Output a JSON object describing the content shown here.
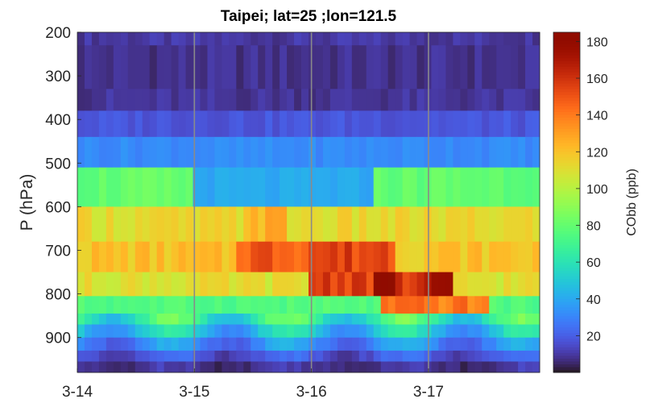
{
  "chart_data": {
    "type": "heatmap",
    "title": "Taipei; lat=25 ;lon=121.5",
    "xlabel": "",
    "ylabel": "P (hPa)",
    "x_tick_labels": [
      "3-14",
      "3-15",
      "3-16",
      "3-17"
    ],
    "x_tick_values": [
      0,
      1,
      2,
      3
    ],
    "xlim": [
      0,
      3.95
    ],
    "xunit": "days from 3-14 00:00",
    "y_tick_values": [
      200,
      300,
      400,
      500,
      600,
      700,
      800,
      900
    ],
    "y_tick_labels": [
      "200",
      "300",
      "400",
      "500",
      "600",
      "700",
      "800",
      "900"
    ],
    "ylim": [
      200,
      980
    ],
    "y_reversed": true,
    "vertical_gridlines_at": [
      1,
      2,
      3
    ],
    "colorbar": {
      "label": "CObb (ppb)",
      "colormap": "turbo",
      "range": [
        0,
        185
      ],
      "tick_values": [
        20,
        40,
        60,
        80,
        100,
        120,
        140,
        160,
        180
      ],
      "tick_labels": [
        "20",
        "40",
        "60",
        "80",
        "100",
        "120",
        "140",
        "160",
        "180"
      ]
    },
    "layers": [
      {
        "p_top": 200,
        "p_bottom": 230,
        "value": 10
      },
      {
        "p_top": 230,
        "p_bottom": 330,
        "value": 8
      },
      {
        "p_top": 330,
        "p_bottom": 380,
        "value": 9
      },
      {
        "p_top": 380,
        "p_bottom": 440,
        "value": 18
      },
      {
        "p_top": 440,
        "p_bottom": 510,
        "value": 32
      },
      {
        "p_top": 510,
        "p_bottom": 600,
        "value": 80
      },
      {
        "p_top": 600,
        "p_bottom": 680,
        "value": 112
      },
      {
        "p_top": 680,
        "p_bottom": 750,
        "value": 120
      },
      {
        "p_top": 750,
        "p_bottom": 805,
        "value": 110
      },
      {
        "p_top": 805,
        "p_bottom": 845,
        "value": 75
      },
      {
        "p_top": 845,
        "p_bottom": 870,
        "value": 45
      },
      {
        "p_top": 870,
        "p_bottom": 900,
        "value": 32
      },
      {
        "p_top": 900,
        "p_bottom": 930,
        "value": 22
      },
      {
        "p_top": 930,
        "p_bottom": 955,
        "value": 15
      },
      {
        "p_top": 955,
        "p_bottom": 980,
        "value": 10
      }
    ],
    "features": [
      {
        "t_start": 1.35,
        "t_end": 1.95,
        "p_top": 680,
        "p_bottom": 750,
        "value": 150
      },
      {
        "t_start": 2.0,
        "t_end": 2.7,
        "p_top": 680,
        "p_bottom": 750,
        "value": 155
      },
      {
        "t_start": 2.0,
        "t_end": 3.2,
        "p_top": 750,
        "p_bottom": 805,
        "value": 158
      },
      {
        "t_start": 2.55,
        "t_end": 2.72,
        "p_top": 750,
        "p_bottom": 805,
        "value": 185
      },
      {
        "t_start": 2.95,
        "t_end": 3.2,
        "p_top": 750,
        "p_bottom": 805,
        "value": 170
      },
      {
        "t_start": 2.6,
        "t_end": 3.5,
        "p_top": 805,
        "p_bottom": 845,
        "value": 140
      },
      {
        "t_start": 1.0,
        "t_end": 2.5,
        "p_top": 510,
        "p_bottom": 600,
        "value": 40
      },
      {
        "t_start": 1.4,
        "t_end": 1.8,
        "p_top": 600,
        "p_bottom": 680,
        "value": 125
      }
    ],
    "diurnal_boundary_layer": {
      "period_days": 1,
      "peak_phase_days": 0.8,
      "amplitude": 40,
      "affected_p_from": 845,
      "affected_p_to": 980
    }
  }
}
